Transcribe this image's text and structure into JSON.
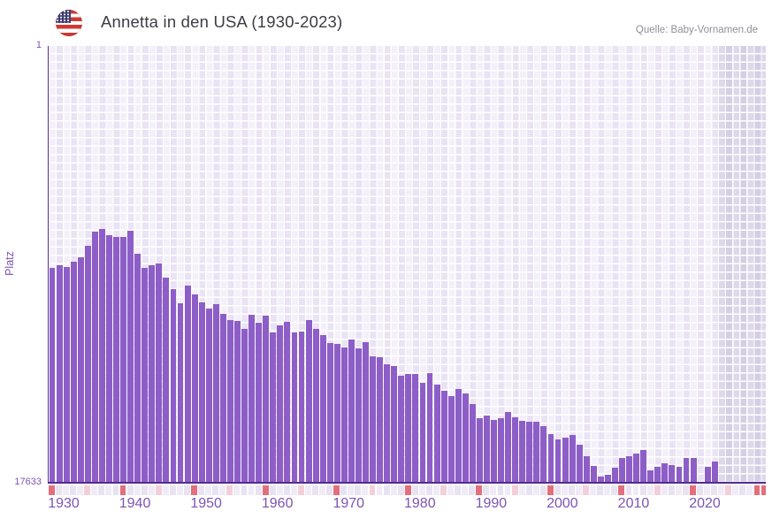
{
  "header": {
    "title": "Annetta in den USA (1930-2023)",
    "source": "Quelle: Baby-Vornamen.de",
    "flag_icon": "us-flag-icon"
  },
  "chart_data": {
    "type": "bar",
    "title": "Annetta in den USA (1930-2023)",
    "ylabel": "Platz",
    "y_axis": {
      "min": 1,
      "max": 17633,
      "inverted": true,
      "top_label": "1",
      "bottom_label": "17633"
    },
    "x_axis": {
      "start_year": 1930,
      "end_year": 2023,
      "tick_labels": [
        "1930",
        "1940",
        "1950",
        "1960",
        "1970",
        "1980",
        "1990",
        "2000",
        "2010",
        "2020"
      ]
    },
    "start_year": 1930,
    "ranks": [
      8978,
      8871,
      8942,
      8728,
      8549,
      8084,
      7512,
      7404,
      7655,
      7726,
      7726,
      7476,
      8406,
      8978,
      8871,
      8799,
      9371,
      9836,
      10409,
      9693,
      10051,
      10373,
      10623,
      10444,
      10838,
      11088,
      11124,
      11446,
      10874,
      11195,
      10909,
      11589,
      11303,
      11160,
      11589,
      11553,
      11088,
      11446,
      11696,
      12018,
      12054,
      12197,
      11875,
      12232,
      11982,
      12554,
      12590,
      12876,
      12948,
      13341,
      13270,
      13270,
      13627,
      13234,
      13699,
      13949,
      14164,
      13878,
      14057,
      14486,
      15058,
      14951,
      15130,
      15058,
      14808,
      15022,
      15165,
      15201,
      15201,
      15380,
      15702,
      15916,
      15845,
      15737,
      16131,
      16596,
      16989,
      17418,
      17347,
      17061,
      16667,
      16596,
      16488,
      16345,
      17168,
      17025,
      16882,
      16953,
      17025,
      16667,
      16667,
      null,
      17025,
      16810
    ],
    "no_data_years": [
      2021
    ],
    "future_shaded_region": {
      "from_year": 2024,
      "to_year": 2030
    },
    "grid": true,
    "legend": "none",
    "colors": {
      "bar": "#8d5ec7",
      "axis": "#532d8e",
      "tick_label": "#7d54b4",
      "grid_cell_light": "#f4f0fa",
      "grid_cell_dark": "#eae3f4",
      "shaded_cell_light": "#ded8ea",
      "shaded_cell_dark": "#d5cee4",
      "strip_decade": "#e26f7b",
      "strip_half_decade": "#f3cfd9",
      "strip_cell_light": "#f0ebf7",
      "strip_cell_dark": "#e9e2f1"
    }
  }
}
